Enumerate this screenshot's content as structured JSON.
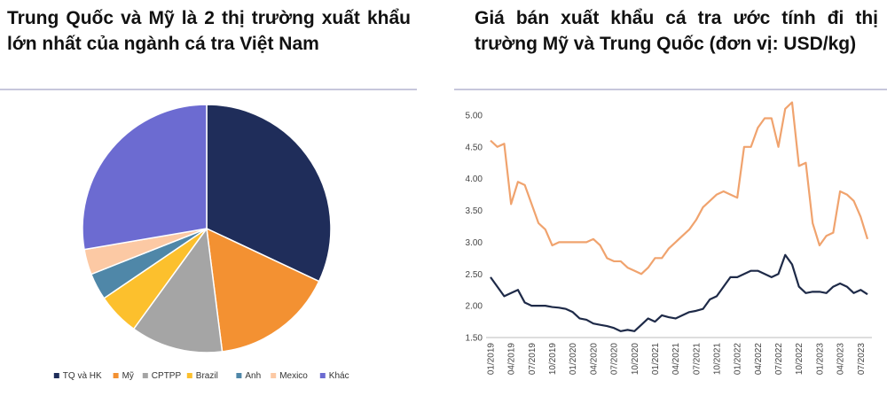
{
  "chart_data": [
    {
      "type": "pie",
      "title": "Trung Quốc và Mỹ là 2 thị trường xuất khẩu lớn nhất của ngành cá tra Việt Nam",
      "categories": [
        "TQ và HK",
        "Mỹ",
        "CPTPP",
        "Brazil",
        "Anh",
        "Mexico",
        "Khác"
      ],
      "values": [
        32,
        16,
        12,
        5.5,
        3.5,
        3.3,
        27.7
      ],
      "colors": [
        "#1f2d5a",
        "#f39132",
        "#a5a5a5",
        "#fcc02d",
        "#4f87a8",
        "#fcc9a4",
        "#6c6bd1"
      ],
      "legend": "bottom"
    },
    {
      "type": "line",
      "title": "Giá bán xuất khẩu cá tra ước tính đi thị trường Mỹ và Trung Quốc (đơn vị: USD/kg)",
      "categories": [
        "01/2019",
        null,
        null,
        "04/2019",
        null,
        null,
        "07/2019",
        null,
        null,
        "10/2019",
        null,
        null,
        "01/2020",
        null,
        null,
        "04/2020",
        null,
        null,
        "07/2020",
        null,
        null,
        "10/2020",
        null,
        null,
        "01/2021",
        null,
        null,
        "04/2021",
        null,
        null,
        "07/2021",
        null,
        null,
        "10/2021",
        null,
        null,
        "01/2022",
        null,
        null,
        "04/2022",
        null,
        null,
        "07/2022",
        null,
        null,
        "10/2022",
        null,
        null,
        "01/2023",
        null,
        null,
        "04/2023",
        null,
        null,
        "07/2023",
        null
      ],
      "series": [
        {
          "color": "#f0a36e",
          "values": [
            4.6,
            4.5,
            4.55,
            3.6,
            3.95,
            3.9,
            3.6,
            3.3,
            3.2,
            2.95,
            3.0,
            3.0,
            3.0,
            3.0,
            3.0,
            3.05,
            2.95,
            2.75,
            2.7,
            2.7,
            2.6,
            2.55,
            2.5,
            2.6,
            2.75,
            2.75,
            2.9,
            3.0,
            3.1,
            3.2,
            3.35,
            3.55,
            3.65,
            3.75,
            3.8,
            3.75,
            3.7,
            4.5,
            4.5,
            4.8,
            4.95,
            4.95,
            4.5,
            5.1,
            5.2,
            4.2,
            4.25,
            3.3,
            2.95,
            3.1,
            3.15,
            3.8,
            3.75,
            3.65,
            3.4,
            3.05
          ]
        },
        {
          "color": "#1e2a48",
          "values": [
            2.45,
            2.3,
            2.15,
            2.2,
            2.25,
            2.05,
            2.0,
            2.0,
            2.0,
            1.98,
            1.97,
            1.95,
            1.9,
            1.8,
            1.78,
            1.72,
            1.7,
            1.68,
            1.65,
            1.6,
            1.62,
            1.6,
            1.7,
            1.8,
            1.75,
            1.85,
            1.82,
            1.8,
            1.85,
            1.9,
            1.92,
            1.95,
            2.1,
            2.15,
            2.3,
            2.45,
            2.45,
            2.5,
            2.55,
            2.55,
            2.5,
            2.45,
            2.5,
            2.8,
            2.65,
            2.3,
            2.2,
            2.22,
            2.22,
            2.2,
            2.3,
            2.35,
            2.3,
            2.2,
            2.25,
            2.18
          ]
        }
      ],
      "ylim": [
        1.5,
        5.25
      ],
      "yticks": [
        {
          "value": 1.5,
          "label": "1.50"
        },
        {
          "value": 2,
          "label": "2.00"
        },
        {
          "value": 2.5,
          "label": "2.50"
        },
        {
          "value": 3,
          "label": "3.00"
        },
        {
          "value": 3.5,
          "label": "3.50"
        },
        {
          "value": 4,
          "label": "4.00"
        },
        {
          "value": 4.5,
          "label": "4.50"
        },
        {
          "value": 5,
          "label": "5.00"
        }
      ],
      "grid": false
    }
  ]
}
